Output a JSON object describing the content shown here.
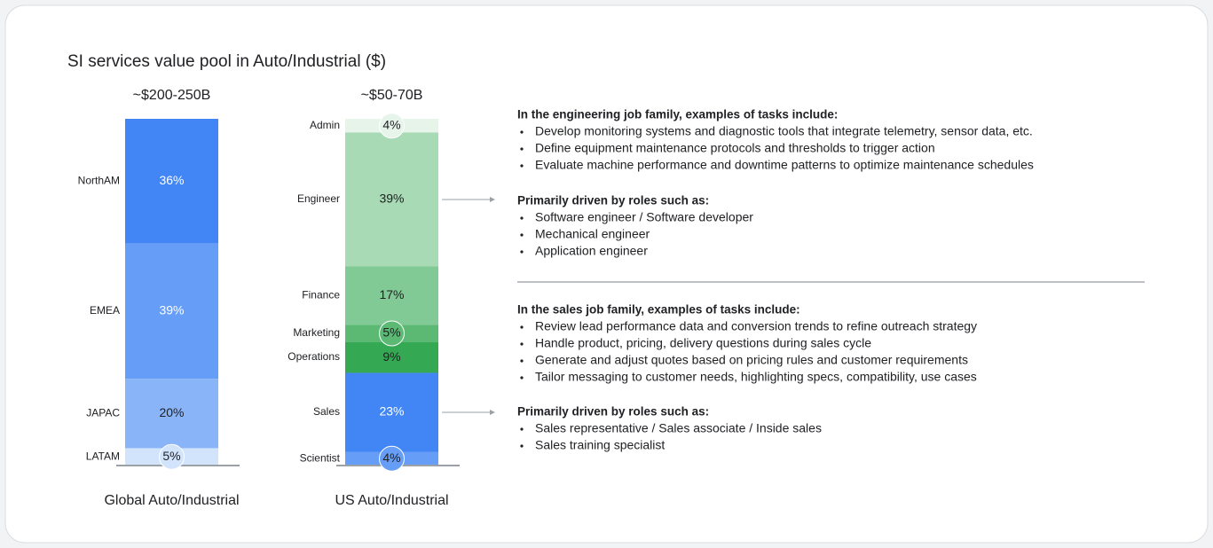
{
  "title": "SI services value pool in Auto/Industrial ($)",
  "chart_data": [
    {
      "type": "stacked_bar",
      "title": "~$200-250B",
      "xlabel": "Global Auto/Industrial",
      "categories": [
        "NorthAM",
        "EMEA",
        "JAPAC",
        "LATAM"
      ],
      "values": [
        36,
        39,
        20,
        5
      ],
      "value_labels": [
        "36%",
        "39%",
        "20%",
        "5%"
      ],
      "colors": [
        "#4285f4",
        "#669df6",
        "#8ab4f8",
        "#d2e3fc"
      ]
    },
    {
      "type": "stacked_bar",
      "title": "~$50-70B",
      "xlabel": "US Auto/Industrial",
      "categories": [
        "Admin",
        "Engineer",
        "Finance",
        "Marketing",
        "Operations",
        "Sales",
        "Scientist"
      ],
      "values": [
        4,
        39,
        17,
        5,
        9,
        23,
        4
      ],
      "value_labels": [
        "4%",
        "39%",
        "17%",
        "5%",
        "9%",
        "23%",
        "4%"
      ],
      "colors": [
        "#e6f4ea",
        "#a8dab5",
        "#81c995",
        "#5bb974",
        "#34a853",
        "#4285f4",
        "#669df6"
      ]
    }
  ],
  "panels": [
    {
      "heading": "In the engineering job family, examples of tasks include:",
      "items": [
        "Develop monitoring systems and diagnostic tools that integrate telemetry, sensor data, etc.",
        "Define equipment maintenance protocols and thresholds to trigger action",
        "Evaluate machine performance and downtime patterns to optimize maintenance schedules"
      ]
    },
    {
      "heading": "Primarily driven by roles such as:",
      "items": [
        "Software engineer / Software developer",
        "Mechanical engineer",
        "Application engineer"
      ]
    },
    {
      "heading": "In the sales job family, examples of tasks include:",
      "items": [
        "Review lead performance data and conversion trends to refine outreach strategy",
        "Handle product, pricing, delivery questions during sales cycle",
        "Generate and adjust quotes based on pricing rules and customer requirements",
        "Tailor messaging to customer needs, highlighting specs, compatibility, use cases"
      ]
    },
    {
      "heading": "Primarily driven by roles such as:",
      "items": [
        "Sales representative / Sales associate / Inside sales",
        "Sales training specialist"
      ]
    }
  ]
}
